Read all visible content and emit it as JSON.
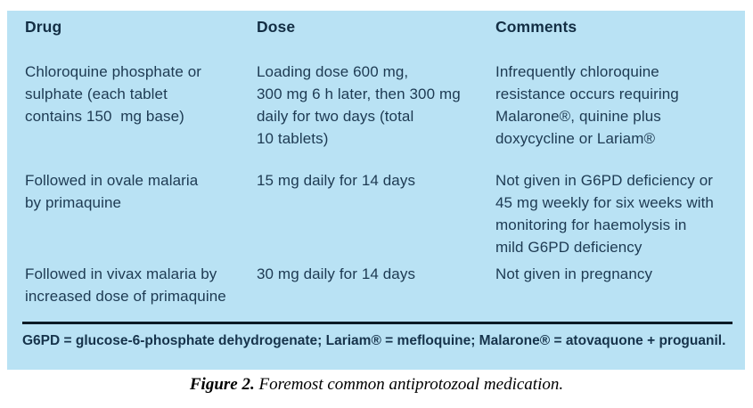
{
  "table": {
    "headers": [
      "Drug",
      "Dose",
      "Comments"
    ],
    "rows": [
      {
        "drug": "Chloroquine phosphate or\nsulphate (each tablet\ncontains 150  mg base)",
        "dose": "Loading dose 600 mg,\n300 mg 6 h later, then 300 mg\ndaily for two days (total\n10 tablets)",
        "comments": "Infrequently chloroquine\nresistance occurs requiring\nMalarone®, quinine plus\ndoxycycline or Lariam®"
      },
      {
        "drug": "Followed in ovale malaria\nby primaquine",
        "dose": "15 mg daily for 14 days",
        "comments": "Not given in G6PD deficiency or\n45 mg weekly for six weeks with\nmonitoring for haemolysis in\nmild G6PD deficiency"
      },
      {
        "drug": "Followed in vivax malaria by\nincreased dose of primaquine",
        "dose": "30 mg daily for 14 days",
        "comments": "Not given in pregnancy"
      }
    ],
    "footnote": "G6PD = glucose-6-phosphate dehydrogenate; Lariam® = mefloquine; Malarone® = atovaquone + proguanil."
  },
  "figure": {
    "caption_label": "Figure 2.",
    "caption_text": "Foremost common antiprotozoal medication."
  },
  "colors": {
    "table_bg": "#b9e2f4",
    "text": "#1d3a52",
    "heading": "#132e44",
    "rule": "#0c1b26",
    "footnote": "#16334b",
    "caption": "#000000"
  }
}
